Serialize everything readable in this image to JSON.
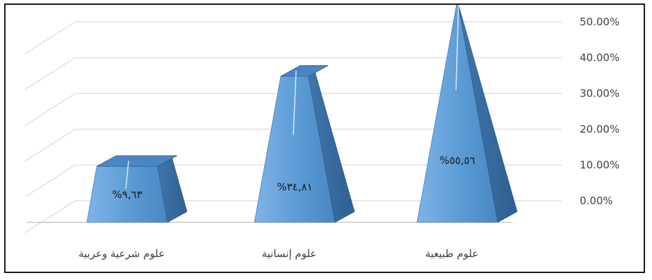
{
  "chart_data": {
    "type": "bar",
    "style": "3d-pyramid",
    "categories": [
      "علوم طبيعية",
      "علوم إنسانية",
      "علوم شرعية وعربية"
    ],
    "values": [
      55.56,
      34.81,
      9.63
    ],
    "data_labels": [
      "%٥٥,٥٦",
      "%٣٤,٨١",
      "%٩,٦٣"
    ],
    "y_ticks": [
      "0.00%",
      "10.00%",
      "20.00%",
      "30.00%",
      "40.00%",
      "50.00%"
    ],
    "ylim": [
      0,
      50
    ],
    "y_axis_side": "right",
    "grid": true,
    "legend": "none",
    "colors": {
      "face": "#5b9bd5",
      "face_light": "#8fc0ec",
      "side": "#3a6fa5",
      "grid": "#d9d9d9"
    }
  }
}
